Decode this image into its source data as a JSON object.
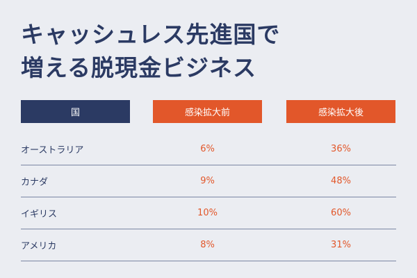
{
  "title": {
    "line1": "キャッシュレス先進国で",
    "line2": "増える脱現金ビジネス"
  },
  "table": {
    "headers": [
      "国",
      "感染拡大前",
      "感染拡大後"
    ],
    "rows": [
      {
        "country": "オーストラリア",
        "before": "6%",
        "after": "36%"
      },
      {
        "country": "カナダ",
        "before": "9%",
        "after": "48%"
      },
      {
        "country": "イギリス",
        "before": "10%",
        "after": "60%"
      },
      {
        "country": "アメリカ",
        "before": "8%",
        "after": "31%"
      }
    ]
  },
  "colors": {
    "background": "#ebedf2",
    "navy": "#2b3a63",
    "orange": "#e2572a"
  }
}
